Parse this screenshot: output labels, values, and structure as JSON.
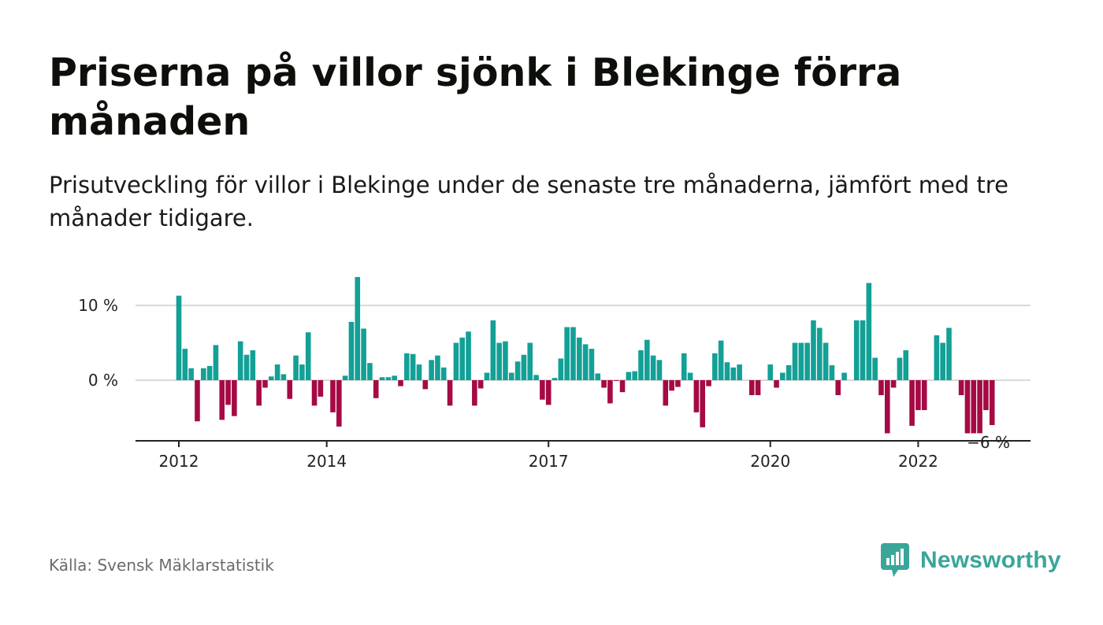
{
  "title": "Priserna på villor sjönk i Blekinge förra månaden",
  "subtitle": "Prisutveckling för villor i Blekinge under de senaste tre månaderna, jämfört med tre månader tidigare.",
  "source": "Källa: Svensk Mäklarstatistik",
  "brand": {
    "name": "Newsworthy",
    "icon": "newsworthy-logo-icon",
    "color": "#3aa69a"
  },
  "colors": {
    "positive": "#13a096",
    "negative": "#a50a44",
    "grid": "#d9d9d9",
    "axis": "#222222"
  },
  "chart_data": {
    "type": "bar",
    "y_unit": "%",
    "ylim": [
      -8,
      14
    ],
    "y_ticks": [
      {
        "value": 10,
        "label": "10 %"
      },
      {
        "value": 0,
        "label": "0 %"
      }
    ],
    "x_ticks": [
      {
        "index": 0,
        "label": "2012"
      },
      {
        "index": 24,
        "label": "2014"
      },
      {
        "index": 60,
        "label": "2017"
      },
      {
        "index": 96,
        "label": "2020"
      },
      {
        "index": 120,
        "label": "2022"
      }
    ],
    "end_label": "−6 %",
    "grid": true,
    "values": [
      11.3,
      4.2,
      1.6,
      -5.5,
      1.6,
      1.9,
      4.7,
      -5.3,
      -3.3,
      -4.8,
      5.2,
      3.4,
      4.0,
      -3.4,
      -1.0,
      0.5,
      2.1,
      0.8,
      -2.5,
      3.3,
      2.1,
      6.4,
      -3.4,
      -2.2,
      0.0,
      -4.3,
      -6.2,
      0.6,
      7.8,
      13.8,
      6.9,
      2.3,
      -2.4,
      0.4,
      0.4,
      0.6,
      -0.8,
      3.6,
      3.5,
      2.1,
      -1.2,
      2.7,
      3.3,
      1.7,
      -3.4,
      5.0,
      5.7,
      6.5,
      -3.4,
      -1.1,
      1.0,
      8.0,
      5.0,
      5.2,
      1.0,
      2.5,
      3.4,
      5.0,
      0.7,
      -2.6,
      -3.3,
      0.3,
      2.9,
      7.1,
      7.1,
      5.7,
      4.8,
      4.2,
      0.9,
      -1.0,
      -3.1,
      -0.1,
      -1.6,
      1.1,
      1.2,
      4.0,
      5.4,
      3.3,
      2.7,
      -3.4,
      -1.4,
      -0.9,
      3.6,
      1.0,
      -4.3,
      -6.3,
      -0.8,
      3.6,
      5.3,
      2.4,
      1.7,
      2.1,
      0.0,
      -2.0,
      -2.0,
      0.0,
      2.1,
      -1.0,
      1.0,
      2.0,
      5.0,
      5.0,
      5.0,
      8.0,
      7.0,
      5.0,
      2.0,
      -2.0,
      1.0,
      0.0,
      8.0,
      8.0,
      13.0,
      3.0,
      -2.0,
      -7.1,
      -1.0,
      3.0,
      4.0,
      -6.1,
      -4.0,
      -4.0,
      0.0,
      6.0,
      5.0,
      7.0,
      0.0,
      -2.0,
      -7.1,
      -7.1,
      -7.1,
      -4.0,
      -6.0
    ]
  }
}
